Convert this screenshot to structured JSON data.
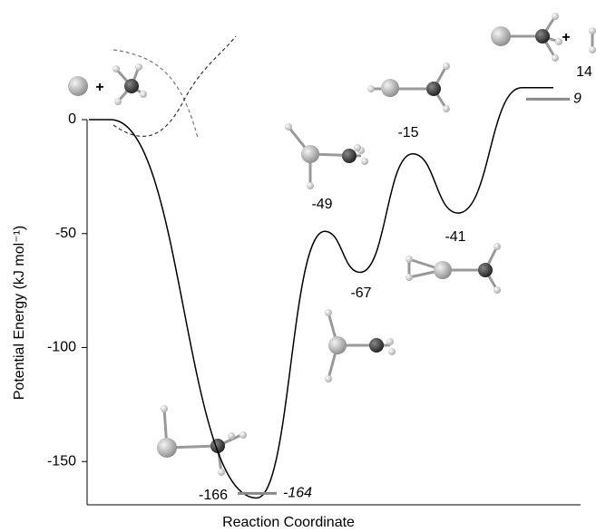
{
  "chart_data": {
    "type": "line",
    "ylabel": "Potential Energy (kJ mol⁻¹)",
    "xlabel": "Reaction Coordinate",
    "ylim": [
      -169,
      0
    ],
    "yticks": [
      0,
      -50,
      -100,
      -150
    ],
    "categories": [
      null,
      null,
      null,
      null,
      null,
      null,
      null
    ],
    "series": [
      {
        "color": "#000000",
        "values": [
          0,
          -166,
          -49,
          -67,
          -15,
          -41,
          14
        ]
      },
      {
        "color": "#888888",
        "values": [
          null,
          -164,
          null,
          null,
          null,
          null,
          9
        ]
      }
    ],
    "annotations": [
      "+",
      "+"
    ]
  }
}
